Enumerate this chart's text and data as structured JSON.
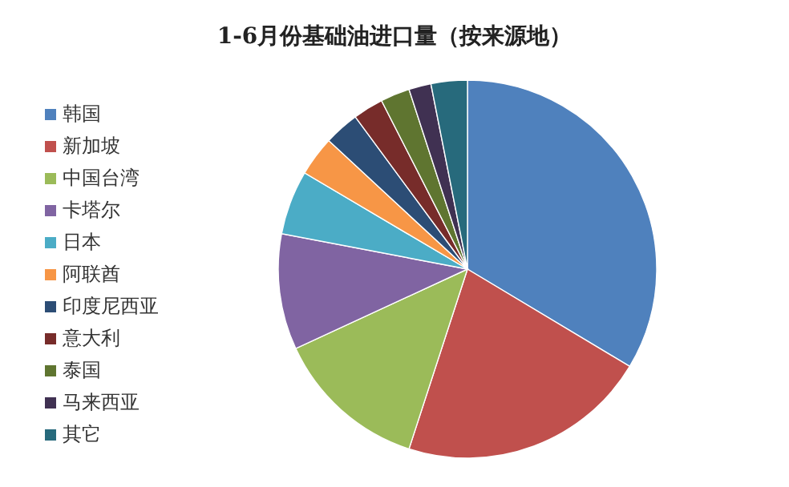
{
  "chart_data": {
    "type": "pie",
    "title": "1-6月份基础油进口量（按来源地）",
    "categories": [
      "韩国",
      "新加坡",
      "中国台湾",
      "卡塔尔",
      "日本",
      "阿联酋",
      "印度尼西亚",
      "意大利",
      "泰国",
      "马来西亚",
      "其它"
    ],
    "values": [
      33.6,
      21.4,
      13.1,
      9.9,
      5.5,
      3.4,
      3.0,
      2.6,
      2.5,
      1.9,
      3.1
    ],
    "colors": [
      "#4f81bd",
      "#c0504d",
      "#9bbb59",
      "#8064a2",
      "#4bacc6",
      "#f79646",
      "#2c4d75",
      "#772c2a",
      "#5f7530",
      "#403152",
      "#276a7c"
    ],
    "legend": "left"
  }
}
